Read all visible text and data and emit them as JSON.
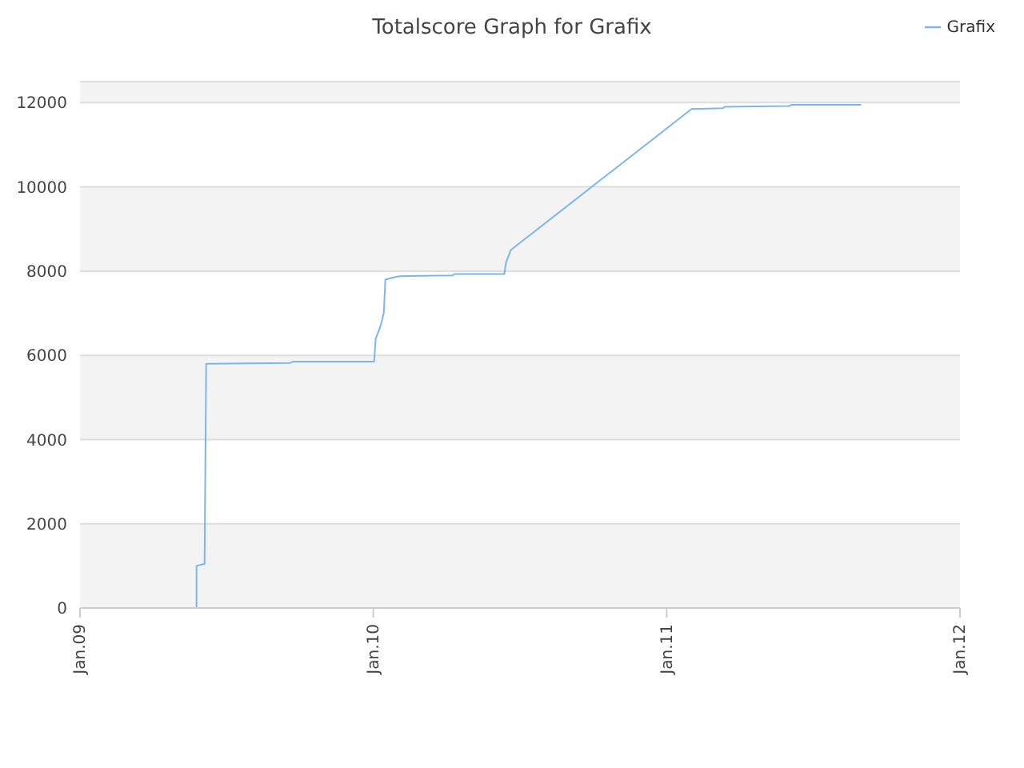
{
  "chart_data": {
    "type": "line",
    "title": "Totalscore Graph for Grafix",
    "x": [
      "2009-05-26",
      "2009-05-26",
      "2009-06-05",
      "2009-06-07",
      "2009-09-19",
      "2009-09-23",
      "2010-01-02",
      "2010-01-04",
      "2010-01-10",
      "2010-01-14",
      "2010-01-16",
      "2010-01-26",
      "2010-02-03",
      "2010-04-10",
      "2010-04-12",
      "2010-06-13",
      "2010-06-15",
      "2010-06-21",
      "2011-02-01",
      "2011-03-12",
      "2011-03-14",
      "2011-06-02",
      "2011-06-06",
      "2011-08-31"
    ],
    "series": [
      {
        "name": "Grafix",
        "color": "#7cb5ec",
        "values": [
          0,
          1000,
          1050,
          5800,
          5820,
          5850,
          5850,
          6400,
          6700,
          7000,
          7800,
          7850,
          7880,
          7900,
          7930,
          7930,
          8200,
          8500,
          11850,
          11870,
          11900,
          11920,
          11950,
          11950
        ]
      }
    ],
    "xlim": [
      "2009-01-01",
      "2012-01-01"
    ],
    "xticks": [
      {
        "value": "2009-01-01",
        "label": "Jan.09"
      },
      {
        "value": "2010-01-01",
        "label": "Jan.10"
      },
      {
        "value": "2011-01-01",
        "label": "Jan.11"
      },
      {
        "value": "2012-01-01",
        "label": "Jan.12"
      }
    ],
    "ylim": [
      0,
      12500
    ],
    "yticks": [
      0,
      2000,
      4000,
      6000,
      8000,
      10000,
      12000
    ],
    "grid": "y",
    "legend": "top right",
    "marker": "none",
    "line_style": "solid"
  }
}
